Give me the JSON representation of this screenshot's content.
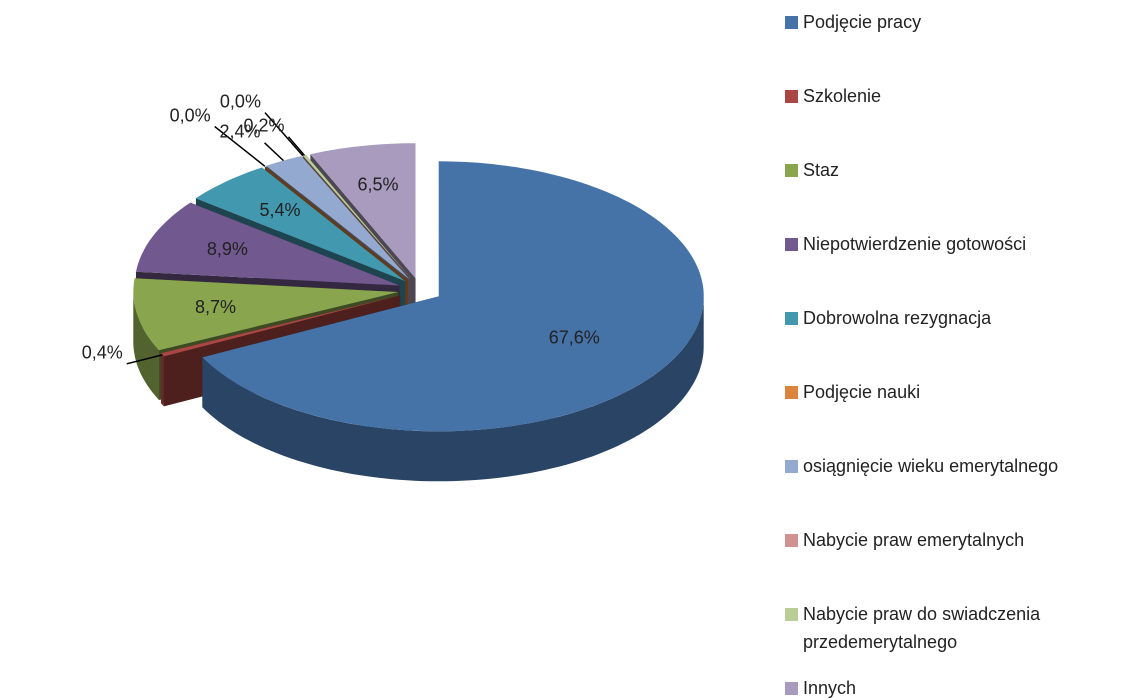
{
  "chart_data": {
    "type": "pie3d",
    "categories": [
      "Podjęcie pracy",
      "Szkolenie",
      "Staz",
      "Niepotwierdzenie gotowości",
      "Dobrowolna rezygnacja",
      "Podjęcie nauki",
      "osiągnięcie wieku emerytalnego",
      "Nabycie praw emerytalnych",
      "Nabycie praw do swiadczenia przedemerytalnego",
      "Innych"
    ],
    "values": [
      67.6,
      0.4,
      8.7,
      8.9,
      5.4,
      0.0,
      2.4,
      0.0,
      0.2,
      6.5
    ],
    "value_labels": [
      "67,6%",
      "0,4%",
      "8,7%",
      "8,9%",
      "5,4%",
      "0,0%",
      "2,4%",
      "0,0%",
      "0,2%",
      "6,5%"
    ],
    "colors": [
      "#4572a7",
      "#aa4643",
      "#89a54e",
      "#71588f",
      "#4198af",
      "#db843d",
      "#93a9cf",
      "#d19392",
      "#b9cd96",
      "#a99bbd"
    ],
    "legend": "right"
  }
}
